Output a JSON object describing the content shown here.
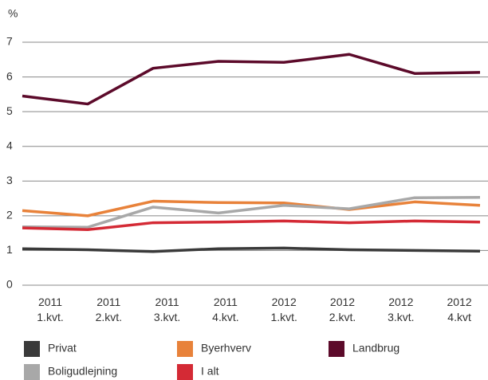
{
  "chart_data": {
    "type": "line",
    "y_label": "%",
    "categories": [
      "2011 1.kvt.",
      "2011 2.kvt.",
      "2011 3.kvt.",
      "2011 4.kvt.",
      "2012 1.kvt.",
      "2012 2.kvt.",
      "2012 3.kvt.",
      "2012 4.kvt"
    ],
    "series": [
      {
        "name": "Privat",
        "color": "#3a3a3a",
        "values": [
          1.05,
          1.02,
          0.97,
          1.05,
          1.07,
          1.02,
          1.0,
          0.98
        ]
      },
      {
        "name": "Byerhverv",
        "color": "#e8823a",
        "values": [
          2.15,
          2.0,
          2.42,
          2.38,
          2.37,
          2.18,
          2.4,
          2.3
        ]
      },
      {
        "name": "Landbrug",
        "color": "#5c0a2a",
        "values": [
          5.45,
          5.22,
          6.25,
          6.45,
          6.42,
          6.65,
          6.1,
          6.13
        ]
      },
      {
        "name": "Boligudlejning",
        "color": "#a8a8a8",
        "values": [
          1.68,
          1.67,
          2.25,
          2.08,
          2.3,
          2.2,
          2.52,
          2.53
        ]
      },
      {
        "name": "I alt",
        "color": "#d42a35",
        "values": [
          1.65,
          1.6,
          1.8,
          1.82,
          1.85,
          1.8,
          1.85,
          1.82
        ]
      }
    ],
    "ylim": [
      0,
      7
    ],
    "yticks": [
      0,
      1,
      2,
      3,
      4,
      5,
      6,
      7
    ],
    "grid": true
  }
}
